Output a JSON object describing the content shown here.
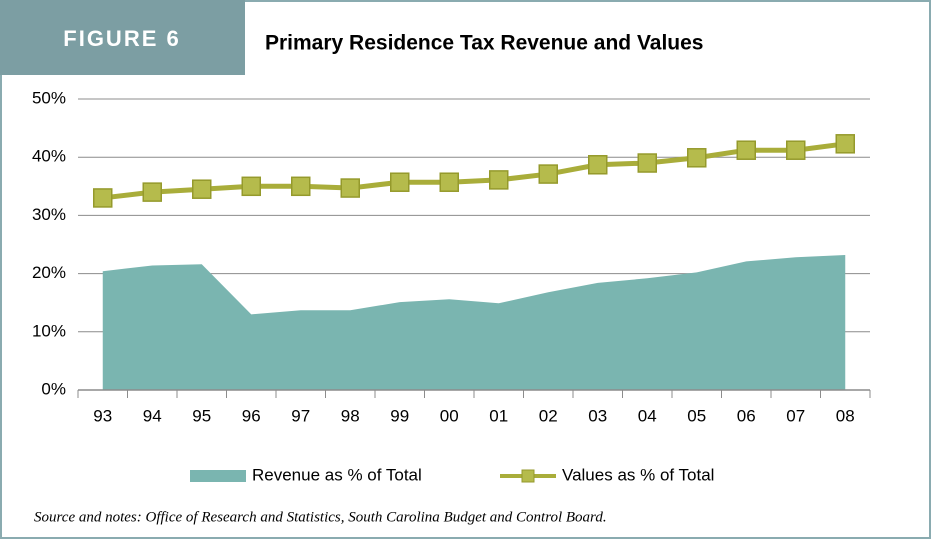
{
  "chart_data": {
    "type": "line",
    "figure_label": "FIGURE 6",
    "title": "Primary Residence Tax Revenue and Values",
    "categories": [
      "93",
      "94",
      "95",
      "96",
      "97",
      "98",
      "99",
      "00",
      "01",
      "02",
      "03",
      "04",
      "05",
      "06",
      "07",
      "08"
    ],
    "series": [
      {
        "name": "Revenue as % of Total",
        "type": "area",
        "color": "#7ab5b0",
        "values": [
          20.4,
          21.4,
          21.6,
          13.0,
          13.7,
          13.7,
          15.1,
          15.6,
          14.9,
          16.8,
          18.4,
          19.2,
          20.2,
          22.1,
          22.8,
          23.2
        ]
      },
      {
        "name": "Values as % of Total",
        "type": "line",
        "color": "#a9ad3a",
        "marker": "square",
        "values": [
          33.0,
          34.0,
          34.5,
          35.0,
          35.0,
          34.7,
          35.7,
          35.7,
          36.1,
          37.1,
          38.7,
          39.0,
          39.9,
          41.2,
          41.2,
          42.3
        ]
      }
    ],
    "ylim": [
      0,
      50
    ],
    "yticks": [
      {
        "value": 0,
        "label": "0%"
      },
      {
        "value": 10,
        "label": "10%"
      },
      {
        "value": 20,
        "label": "20%"
      },
      {
        "value": 30,
        "label": "30%"
      },
      {
        "value": 40,
        "label": "40%"
      },
      {
        "value": 50,
        "label": "50%"
      }
    ],
    "grid": true,
    "legend": "bottom",
    "note": "Source and notes: Office of Research and Statistics, South Carolina Budget and Control Board."
  }
}
